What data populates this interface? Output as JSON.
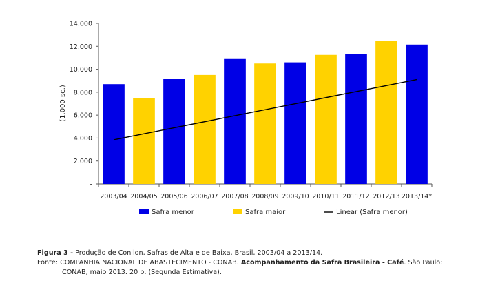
{
  "chart_data": {
    "type": "bar",
    "categories": [
      "2003/04",
      "2004/05",
      "2005/06",
      "2006/07",
      "2007/08",
      "2008/09",
      "2009/10",
      "2010/11",
      "2011/12",
      "2012/13",
      "2013/14*"
    ],
    "series": [
      {
        "name": "Safra menor",
        "color": "#0000e6",
        "values": [
          8700,
          null,
          9150,
          null,
          10950,
          null,
          10600,
          null,
          11300,
          null,
          12150
        ]
      },
      {
        "name": "Safra maior",
        "color": "#ffd200",
        "values": [
          null,
          7500,
          null,
          9500,
          null,
          10500,
          null,
          11250,
          null,
          12450,
          null
        ]
      }
    ],
    "trendline": {
      "name": "Linear (Safra menor)",
      "color": "#000000",
      "start": 3850,
      "end": 9100
    },
    "ylabel": "(1.000 sc.)",
    "ylim": [
      0,
      14000
    ],
    "yticks": [
      "-",
      "2.000",
      "4.000",
      "6.000",
      "8.000",
      "10.000",
      "12.000",
      "14.000"
    ],
    "grid": false,
    "legend_position": "bottom"
  },
  "caption": {
    "figure_label": "Figura 3 -",
    "figure_text": " Produção de Conilon, Safras de Alta e de Baixa, Brasil, 2003/04 a 2013/14.",
    "source_prefix": "Fonte: COMPANHIA NACIONAL DE ABASTECIMENTO - CONAB. ",
    "source_title": "Acompanhamento da Safra Brasileira - Café",
    "source_suffix": ". São Paulo:",
    "source_line2": "CONAB, maio 2013. 20 p. (Segunda Estimativa)."
  }
}
